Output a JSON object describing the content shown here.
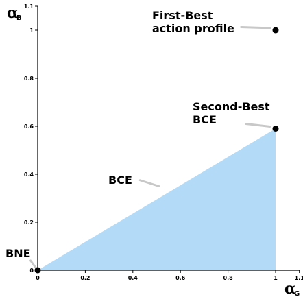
{
  "chart_data": {
    "type": "area",
    "title": "",
    "xlabel": "α",
    "xlabel_sub": "G",
    "ylabel": "α",
    "ylabel_sub": "B",
    "xlim": [
      0,
      1.1
    ],
    "ylim": [
      0,
      1.1
    ],
    "grid": false,
    "xticks": [
      {
        "value": 0,
        "label": "0"
      },
      {
        "value": 0.2,
        "label": "0.2"
      },
      {
        "value": 0.4,
        "label": "0.4"
      },
      {
        "value": 0.6,
        "label": "0.6"
      },
      {
        "value": 0.8,
        "label": "0.8"
      },
      {
        "value": 1,
        "label": "1"
      },
      {
        "value": 1.1,
        "label": "1.1"
      }
    ],
    "yticks": [
      {
        "value": 0,
        "label": "0"
      },
      {
        "value": 0.2,
        "label": "0.2"
      },
      {
        "value": 0.4,
        "label": "0.4"
      },
      {
        "value": 0.6,
        "label": "0.6"
      },
      {
        "value": 0.8,
        "label": "0.8"
      },
      {
        "value": 1,
        "label": "1"
      },
      {
        "value": 1.1,
        "label": "1.1"
      }
    ],
    "region": {
      "color": "#b3dbf7",
      "vertices": [
        {
          "x": 0,
          "y": 0
        },
        {
          "x": 1,
          "y": 0.59
        },
        {
          "x": 1,
          "y": 0
        }
      ]
    },
    "points": [
      {
        "x": 0,
        "y": 0
      },
      {
        "x": 1,
        "y": 0.59
      },
      {
        "x": 1,
        "y": 1
      }
    ],
    "annotations": [
      {
        "lines": [
          "First-Best",
          "action profile"
        ],
        "target": {
          "x": 1,
          "y": 1
        },
        "tail": {
          "x": 0.855,
          "y": 1.013
        }
      },
      {
        "lines": [
          "Second-Best",
          "BCE"
        ],
        "target": {
          "x": 1,
          "y": 0.59
        },
        "tail": {
          "x": 0.875,
          "y": 0.61
        }
      },
      {
        "lines": [
          "BCE"
        ],
        "target": {
          "x": 0.51,
          "y": 0.35
        },
        "tail": {
          "x": 0.43,
          "y": 0.375
        }
      },
      {
        "lines": [
          "BNE"
        ],
        "target": {
          "x": 0,
          "y": 0
        },
        "tail": {
          "x": -0.03,
          "y": 0.04
        }
      }
    ],
    "colors": {
      "point": "#000000",
      "pointer": "#c8c8c8",
      "axis": "#000000"
    }
  }
}
